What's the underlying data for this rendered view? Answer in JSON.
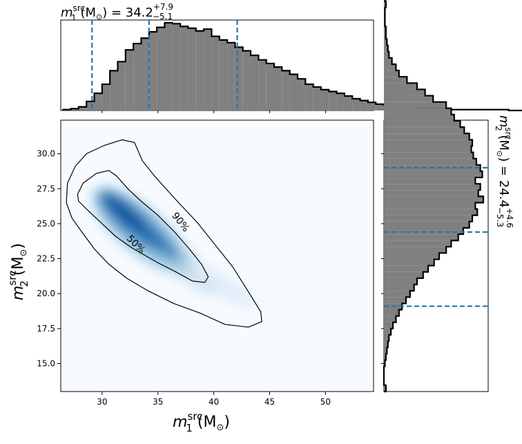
{
  "chart_data": [
    {
      "type": "histogram",
      "panel": "top",
      "variable": "m1_src",
      "title": {
        "sym": "m",
        "sup": "src",
        "sub": "1",
        "unit": " (M",
        "unit_sub": "⊙",
        "unit_close": ") = 34.2",
        "err_plus": "+7.9",
        "err_minus": "−5.1"
      },
      "median": 34.2,
      "err_plus": 7.9,
      "err_minus": 5.1,
      "quantile_lines": [
        29.1,
        34.2,
        42.1
      ],
      "bin_edges_start": 26.5,
      "bin_width": 0.7,
      "densities": [
        0.01,
        0.02,
        0.04,
        0.1,
        0.19,
        0.29,
        0.44,
        0.54,
        0.67,
        0.74,
        0.8,
        0.87,
        0.92,
        0.97,
        0.96,
        0.93,
        0.91,
        0.88,
        0.9,
        0.82,
        0.78,
        0.75,
        0.7,
        0.66,
        0.61,
        0.56,
        0.52,
        0.48,
        0.44,
        0.4,
        0.35,
        0.29,
        0.26,
        0.23,
        0.21,
        0.19,
        0.16,
        0.13,
        0.11,
        0.09,
        0.07,
        0.06,
        0.05,
        0.04,
        0.04,
        0.03,
        0.03,
        0.02,
        0.02,
        0.01,
        0.01,
        0.01,
        0.01,
        0.01,
        0.01,
        0.01,
        0.01,
        0.0,
        0.0,
        0.0,
        0.0,
        0.0,
        0.0,
        0.0,
        0.0,
        0.0
      ],
      "xlim": [
        26.3,
        54.3
      ]
    },
    {
      "type": "heatmap",
      "panel": "joint",
      "xlabel": {
        "sym": "m",
        "sup": "src",
        "sub": "1",
        "unit": " (M",
        "unit_sub": "⊙",
        "unit_close": ")"
      },
      "ylabel": {
        "sym": "m",
        "sup": "src",
        "sub": "2",
        "unit": " (M",
        "unit_sub": "⊙",
        "unit_close": ")"
      },
      "xlim": [
        26.3,
        54.3
      ],
      "ylim": [
        13.0,
        32.4
      ],
      "xticks": [
        "30",
        "35",
        "40",
        "45",
        "50"
      ],
      "yticks": [
        "15.0",
        "17.5",
        "20.0",
        "22.5",
        "25.0",
        "27.5",
        "30.0"
      ],
      "density_peak": {
        "x": 32.8,
        "y": 25.0
      },
      "contours": [
        {
          "label": "50%",
          "points": [
            [
              27.8,
              27.1
            ],
            [
              28.3,
              27.9
            ],
            [
              29.5,
              28.6
            ],
            [
              30.6,
              28.8
            ],
            [
              31.3,
              28.4
            ],
            [
              32.3,
              27.5
            ],
            [
              33.5,
              26.6
            ],
            [
              35.0,
              25.6
            ],
            [
              36.5,
              24.4
            ],
            [
              37.8,
              23.2
            ],
            [
              38.9,
              22.1
            ],
            [
              39.5,
              21.2
            ],
            [
              39.2,
              20.8
            ],
            [
              38.1,
              20.9
            ],
            [
              36.5,
              21.6
            ],
            [
              35.0,
              22.2
            ],
            [
              33.7,
              22.8
            ],
            [
              32.6,
              23.3
            ],
            [
              31.2,
              24.1
            ],
            [
              30.0,
              25.0
            ],
            [
              28.8,
              25.9
            ],
            [
              27.9,
              26.6
            ]
          ],
          "label_pos": [
            33.0,
            23.5
          ],
          "label_rot": 45
        },
        {
          "label": "90%",
          "points": [
            [
              26.8,
              26.5
            ],
            [
              26.9,
              27.9
            ],
            [
              27.6,
              29.1
            ],
            [
              28.6,
              30.0
            ],
            [
              30.2,
              30.6
            ],
            [
              31.8,
              31.0
            ],
            [
              32.9,
              30.8
            ],
            [
              33.6,
              29.5
            ],
            [
              34.7,
              28.4
            ],
            [
              36.5,
              26.8
            ],
            [
              38.5,
              25.1
            ],
            [
              40.1,
              23.5
            ],
            [
              41.7,
              21.9
            ],
            [
              43.2,
              20.0
            ],
            [
              44.2,
              18.7
            ],
            [
              44.3,
              18.0
            ],
            [
              43.1,
              17.6
            ],
            [
              41.0,
              17.8
            ],
            [
              38.8,
              18.6
            ],
            [
              36.4,
              19.3
            ],
            [
              34.1,
              20.2
            ],
            [
              32.2,
              21.1
            ],
            [
              30.6,
              22.1
            ],
            [
              29.3,
              23.2
            ],
            [
              28.2,
              24.4
            ],
            [
              27.3,
              25.4
            ]
          ],
          "label_pos": [
            37.0,
            25.1
          ],
          "label_rot": 52
        }
      ]
    },
    {
      "type": "histogram",
      "panel": "right",
      "orientation": "horizontal",
      "variable": "m2_src",
      "title": {
        "sym": "m",
        "sup": "src",
        "sub": "2",
        "unit": " (M",
        "unit_sub": "⊙",
        "unit_close": ") = 24.4",
        "err_plus": "+4.6",
        "err_minus": "−5.3"
      },
      "median": 24.4,
      "err_plus": 4.6,
      "err_minus": 5.3,
      "quantile_lines": [
        19.1,
        24.4,
        29.0
      ],
      "bin_edges_start": 13.0,
      "bin_width": 0.45,
      "densities": [
        0.02,
        0.0,
        0.0,
        0.0,
        0.01,
        0.02,
        0.03,
        0.04,
        0.05,
        0.07,
        0.09,
        0.12,
        0.15,
        0.18,
        0.22,
        0.26,
        0.3,
        0.33,
        0.39,
        0.44,
        0.5,
        0.55,
        0.62,
        0.67,
        0.74,
        0.79,
        0.85,
        0.88,
        0.93,
        0.91,
        0.99,
        0.94,
        0.96,
        0.91,
        0.98,
        0.96,
        0.92,
        0.89,
        0.87,
        0.88,
        0.85,
        0.8,
        0.76,
        0.7,
        0.67,
        0.62,
        0.49,
        0.41,
        0.33,
        0.23,
        0.15,
        0.12,
        0.08,
        0.05,
        0.04,
        0.03,
        0.02,
        0.02,
        0.01,
        0.01,
        0.01,
        0.02,
        0.01
      ],
      "ylim": [
        13.0,
        32.4
      ]
    }
  ]
}
